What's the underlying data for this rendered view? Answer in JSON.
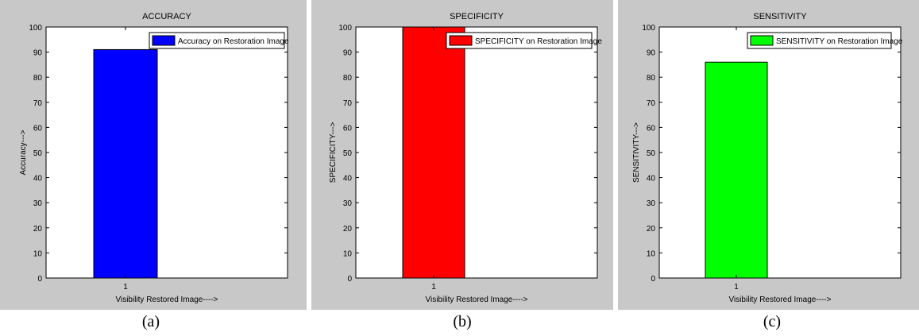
{
  "chart_data": [
    {
      "type": "bar",
      "title": "ACCURACY",
      "categories": [
        "1"
      ],
      "series": [
        {
          "name": "Accuracy on Restoration Image",
          "values": [
            91
          ]
        }
      ],
      "xlabel": "Visibility Restored Image---->",
      "ylabel": "Accuracy--->",
      "ylim": [
        0,
        100
      ],
      "yticks": [
        "0",
        "10",
        "20",
        "30",
        "40",
        "50",
        "60",
        "70",
        "80",
        "90",
        "100"
      ],
      "grid": false,
      "legend": "top-right",
      "bar_color": "#0000ff"
    },
    {
      "type": "bar",
      "title": "SPECIFICITY",
      "categories": [
        "1"
      ],
      "series": [
        {
          "name": "SPECIFICITY on Restoration Image",
          "values": [
            100
          ]
        }
      ],
      "xlabel": "Visibility Restored Image---->",
      "ylabel": "SPECIFICITY--->",
      "ylim": [
        0,
        100
      ],
      "yticks": [
        "0",
        "10",
        "20",
        "30",
        "40",
        "50",
        "60",
        "70",
        "80",
        "90",
        "100"
      ],
      "grid": false,
      "legend": "top-right",
      "bar_color": "#ff0000"
    },
    {
      "type": "bar",
      "title": "SENSITIVITY",
      "categories": [
        "1"
      ],
      "series": [
        {
          "name": "SENSITIVITY on Restoration Image",
          "values": [
            86
          ]
        }
      ],
      "xlabel": "Visibility Restored Image---->",
      "ylabel": "SENSITIVITY--->",
      "ylim": [
        0,
        100
      ],
      "yticks": [
        "0",
        "10",
        "20",
        "30",
        "40",
        "50",
        "60",
        "70",
        "80",
        "90",
        "100"
      ],
      "grid": false,
      "legend": "top-right",
      "bar_color": "#00ff00"
    }
  ],
  "captions": [
    "(a)",
    "(b)",
    "(c)"
  ]
}
